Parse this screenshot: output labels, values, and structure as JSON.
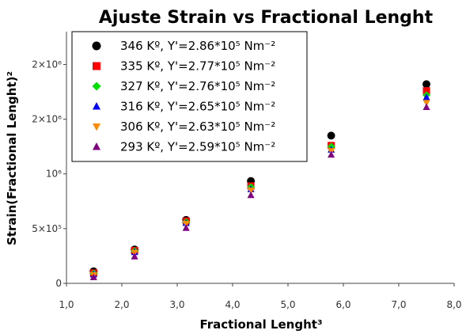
{
  "chart_data": {
    "type": "scatter",
    "title": "Ajuste Strain vs Fractional Lenght",
    "xlabel": "Fractional Lenght³",
    "ylabel": "Strain(Fractional Lenght)²",
    "xlim": [
      1.0,
      8.0
    ],
    "ylim": [
      0,
      2300000
    ],
    "x_ticks": [
      {
        "value": 1.0,
        "label": "1,0"
      },
      {
        "value": 2.0,
        "label": "2,0"
      },
      {
        "value": 3.0,
        "label": "3,0"
      },
      {
        "value": 4.0,
        "label": "4,0"
      },
      {
        "value": 5.0,
        "label": "5,0"
      },
      {
        "value": 6.0,
        "label": "6,0"
      },
      {
        "value": 7.0,
        "label": "7,0"
      },
      {
        "value": 8.0,
        "label": "8,0"
      }
    ],
    "y_ticks": [
      {
        "value": 0,
        "label": "0"
      },
      {
        "value": 500000,
        "label": "5×10⁵"
      },
      {
        "value": 1000000,
        "label": "10⁶"
      },
      {
        "value": 1500000,
        "label": "2×10⁶"
      },
      {
        "value": 2000000,
        "label": "2×10⁶"
      }
    ],
    "legend_position": "top-left",
    "grid": false,
    "series": [
      {
        "name": "346 Kº, Y'=2.86*10⁵ Nm⁻²",
        "marker": "circle",
        "color": "#000000",
        "x": [
          1.49,
          2.23,
          3.16,
          4.33,
          5.78,
          7.5
        ],
        "y": [
          110000,
          310000,
          580000,
          935000,
          1350000,
          1820000
        ]
      },
      {
        "name": "335 Kº, Y'=2.77*10⁵ Nm⁻²",
        "marker": "square",
        "color": "#ff0000",
        "x": [
          1.49,
          2.23,
          3.16,
          4.33,
          5.78,
          7.5
        ],
        "y": [
          95000,
          300000,
          570000,
          890000,
          1260000,
          1760000
        ]
      },
      {
        "name": "327 Kº, Y'=2.76*10⁵ Nm⁻²",
        "marker": "diamond",
        "color": "#00e000",
        "x": [
          1.49,
          2.23,
          3.16,
          4.33,
          5.78,
          7.5
        ],
        "y": [
          90000,
          295000,
          560000,
          880000,
          1250000,
          1720000
        ]
      },
      {
        "name": "316 Kº, Y'=2.65*10⁵ Nm⁻²",
        "marker": "triangle-up",
        "color": "#0000ff",
        "x": [
          1.49,
          2.23,
          3.16,
          4.33,
          5.78,
          7.5
        ],
        "y": [
          80000,
          285000,
          550000,
          860000,
          1220000,
          1700000
        ]
      },
      {
        "name": "306 Kº, Y'=2.63*10⁵ Nm⁻²",
        "marker": "triangle-down",
        "color": "#ff8c00",
        "x": [
          1.49,
          2.23,
          3.16,
          4.33,
          5.78,
          7.5
        ],
        "y": [
          75000,
          280000,
          545000,
          850000,
          1210000,
          1650000
        ]
      },
      {
        "name": "293 Kº, Y'=2.59*10⁵ Nm⁻²",
        "marker": "triangle-up",
        "color": "#800080",
        "x": [
          1.49,
          2.23,
          3.16,
          4.33,
          5.78,
          7.5
        ],
        "y": [
          55000,
          245000,
          505000,
          805000,
          1175000,
          1610000
        ]
      }
    ]
  }
}
